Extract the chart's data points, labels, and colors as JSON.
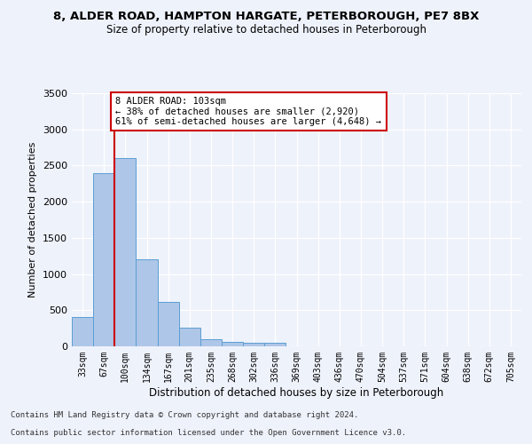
{
  "title1": "8, ALDER ROAD, HAMPTON HARGATE, PETERBOROUGH, PE7 8BX",
  "title2": "Size of property relative to detached houses in Peterborough",
  "xlabel": "Distribution of detached houses by size in Peterborough",
  "ylabel": "Number of detached properties",
  "bins": [
    "33sqm",
    "67sqm",
    "100sqm",
    "134sqm",
    "167sqm",
    "201sqm",
    "235sqm",
    "268sqm",
    "302sqm",
    "336sqm",
    "369sqm",
    "403sqm",
    "436sqm",
    "470sqm",
    "504sqm",
    "537sqm",
    "571sqm",
    "604sqm",
    "638sqm",
    "672sqm",
    "705sqm"
  ],
  "values": [
    400,
    2400,
    2600,
    1200,
    620,
    260,
    100,
    60,
    55,
    45,
    0,
    0,
    0,
    0,
    0,
    0,
    0,
    0,
    0,
    0,
    0
  ],
  "bar_color": "#aec6e8",
  "bar_edge_color": "#5a9fd4",
  "vline_color": "#cc0000",
  "annotation_text": "8 ALDER ROAD: 103sqm\n← 38% of detached houses are smaller (2,920)\n61% of semi-detached houses are larger (4,648) →",
  "annotation_box_color": "#ffffff",
  "annotation_box_edge": "#cc0000",
  "ylim": [
    0,
    3500
  ],
  "yticks": [
    0,
    500,
    1000,
    1500,
    2000,
    2500,
    3000,
    3500
  ],
  "footer1": "Contains HM Land Registry data © Crown copyright and database right 2024.",
  "footer2": "Contains public sector information licensed under the Open Government Licence v3.0.",
  "bg_color": "#eef2fb",
  "grid_color": "#ffffff"
}
